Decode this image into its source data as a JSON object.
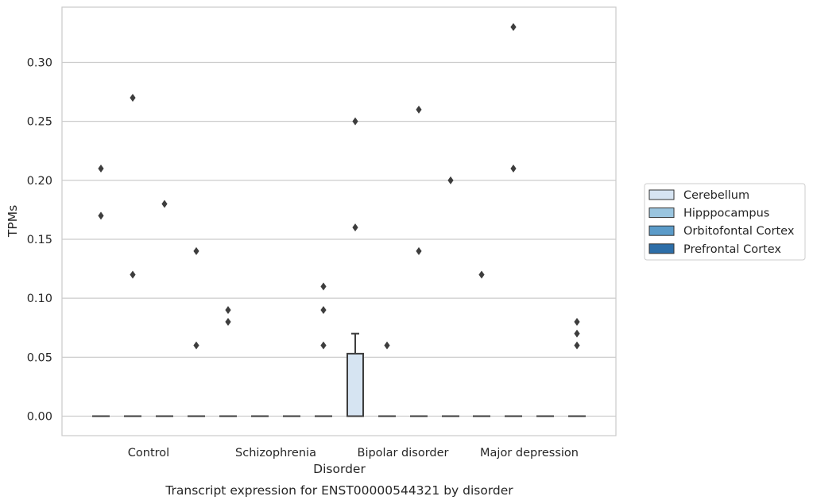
{
  "chart_data": {
    "type": "box",
    "caption": "Transcript expression for ENST00000544321 by disorder",
    "xlabel": "Disorder",
    "ylabel": "TPMs",
    "ylim": [
      -0.016,
      0.348
    ],
    "yticks": [
      "0.00",
      "0.05",
      "0.10",
      "0.15",
      "0.20",
      "0.25",
      "0.30"
    ],
    "grid": "horizontal",
    "legend_position": "right",
    "categories": [
      "Control",
      "Schizophrenia",
      "Bipolar disorder",
      "Major depression"
    ],
    "series": [
      {
        "name": "Cerebellum",
        "color": "#d6e4f2",
        "boxes": [
          {
            "q1": 0,
            "median": 0,
            "q3": 0,
            "whisker_low": 0,
            "whisker_high": 0,
            "outliers": [
              0.21,
              0.17
            ]
          },
          {
            "q1": 0,
            "median": 0,
            "q3": 0,
            "whisker_low": 0,
            "whisker_high": 0,
            "outliers": [
              0.09,
              0.08
            ]
          },
          {
            "q1": 0,
            "median": 0,
            "q3": 0.053,
            "whisker_low": 0,
            "whisker_high": 0.07,
            "outliers": [
              0.25,
              0.16
            ]
          },
          {
            "q1": 0,
            "median": 0,
            "q3": 0,
            "whisker_low": 0,
            "whisker_high": 0,
            "outliers": [
              0.12
            ]
          }
        ]
      },
      {
        "name": "Hipppocampus",
        "color": "#9ac5df",
        "boxes": [
          {
            "q1": 0,
            "median": 0,
            "q3": 0,
            "whisker_low": 0,
            "whisker_high": 0,
            "outliers": [
              0.27,
              0.12
            ]
          },
          {
            "q1": 0,
            "median": 0,
            "q3": 0,
            "whisker_low": 0,
            "whisker_high": 0,
            "outliers": []
          },
          {
            "q1": 0,
            "median": 0,
            "q3": 0,
            "whisker_low": 0,
            "whisker_high": 0,
            "outliers": [
              0.06
            ]
          },
          {
            "q1": 0,
            "median": 0,
            "q3": 0,
            "whisker_low": 0,
            "whisker_high": 0,
            "outliers": [
              0.33,
              0.21
            ]
          }
        ]
      },
      {
        "name": "Orbitofontal Cortex",
        "color": "#5b9bc9",
        "boxes": [
          {
            "q1": 0,
            "median": 0,
            "q3": 0,
            "whisker_low": 0,
            "whisker_high": 0,
            "outliers": [
              0.18
            ]
          },
          {
            "q1": 0,
            "median": 0,
            "q3": 0,
            "whisker_low": 0,
            "whisker_high": 0,
            "outliers": []
          },
          {
            "q1": 0,
            "median": 0,
            "q3": 0,
            "whisker_low": 0,
            "whisker_high": 0,
            "outliers": [
              0.26,
              0.14
            ]
          },
          {
            "q1": 0,
            "median": 0,
            "q3": 0,
            "whisker_low": 0,
            "whisker_high": 0,
            "outliers": []
          }
        ]
      },
      {
        "name": "Prefrontal Cortex",
        "color": "#2d6ea8",
        "boxes": [
          {
            "q1": 0,
            "median": 0,
            "q3": 0,
            "whisker_low": 0,
            "whisker_high": 0,
            "outliers": [
              0.14,
              0.06
            ]
          },
          {
            "q1": 0,
            "median": 0,
            "q3": 0,
            "whisker_low": 0,
            "whisker_high": 0,
            "outliers": [
              0.11,
              0.09,
              0.06
            ]
          },
          {
            "q1": 0,
            "median": 0,
            "q3": 0,
            "whisker_low": 0,
            "whisker_high": 0,
            "outliers": [
              0.2
            ]
          },
          {
            "q1": 0,
            "median": 0,
            "q3": 0,
            "whisker_low": 0,
            "whisker_high": 0,
            "outliers": [
              0.08,
              0.07,
              0.06
            ]
          }
        ]
      }
    ]
  }
}
